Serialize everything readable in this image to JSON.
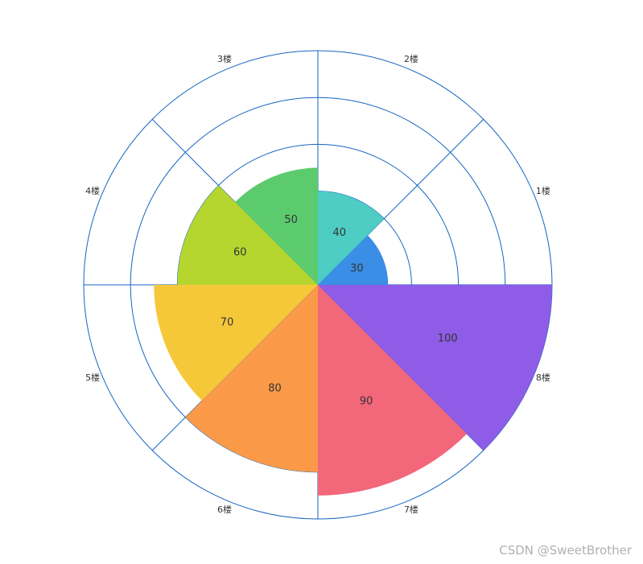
{
  "chart_data": {
    "type": "polar-bar",
    "categories": [
      "1楼",
      "2楼",
      "3楼",
      "4楼",
      "5楼",
      "6楼",
      "7楼",
      "8楼"
    ],
    "values": [
      30,
      40,
      50,
      60,
      70,
      80,
      90,
      100
    ],
    "colors": [
      "#3a8ee6",
      "#4ecdc4",
      "#5ccb6e",
      "#b5d62f",
      "#f5c83a",
      "#fa9a48",
      "#f2677a",
      "#8e5ce6"
    ],
    "radius_max": 100,
    "rings": [
      20,
      40,
      60,
      80,
      100
    ],
    "grid_color": "#1565c0"
  },
  "watermark": "CSDN @SweetBrother"
}
